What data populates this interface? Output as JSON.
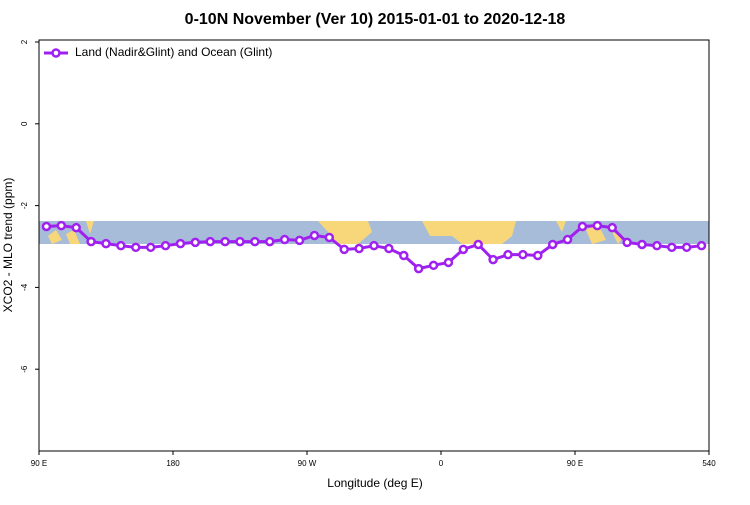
{
  "chart_data": {
    "type": "line",
    "title": "0-10N November (Ver 10)   2015-01-01 to 2020-12-18",
    "x_label": "Longitude (deg E)",
    "y_label": "XCO2 - MLO trend (ppm)",
    "x": [
      95,
      105,
      115,
      125,
      135,
      145,
      155,
      165,
      175,
      185,
      195,
      205,
      215,
      225,
      235,
      245,
      255,
      265,
      275,
      285,
      295,
      305,
      315,
      325,
      335,
      345,
      355,
      365,
      375,
      385,
      395,
      405,
      415,
      425,
      435,
      445,
      455,
      465,
      475,
      485,
      495,
      505,
      515,
      525,
      535
    ],
    "series": [
      {
        "name": "Land (Nadir&Glint) and Ocean (Glint)",
        "color": "#a020f0",
        "values": [
          -2.51,
          -2.49,
          -2.54,
          -2.88,
          -2.93,
          -2.98,
          -3.02,
          -3.02,
          -2.98,
          -2.93,
          -2.9,
          -2.88,
          -2.88,
          -2.88,
          -2.88,
          -2.88,
          -2.83,
          -2.85,
          -2.73,
          -2.78,
          -3.07,
          -3.05,
          -2.98,
          -3.05,
          -3.22,
          -3.54,
          -3.46,
          -3.39,
          -3.07,
          -2.95,
          -3.32,
          -3.2,
          -3.2,
          -3.22,
          -2.95,
          -2.83,
          -2.51,
          -2.49,
          -2.54,
          -2.9,
          -2.95,
          -2.98,
          -3.02,
          -3.02,
          -2.98
        ]
      }
    ],
    "xlim": [
      90,
      540
    ],
    "xticks": [
      {
        "value": 90,
        "label": "90 E"
      },
      180,
      {
        "value": 270,
        "label": "90 W"
      },
      {
        "value": 360,
        "label": "0"
      },
      {
        "value": 450,
        "label": "90 E"
      },
      540
    ],
    "ylim": [
      -8,
      2
    ],
    "yticks": [
      2,
      0,
      -2,
      -4,
      -6
    ],
    "legend": "top-left"
  }
}
